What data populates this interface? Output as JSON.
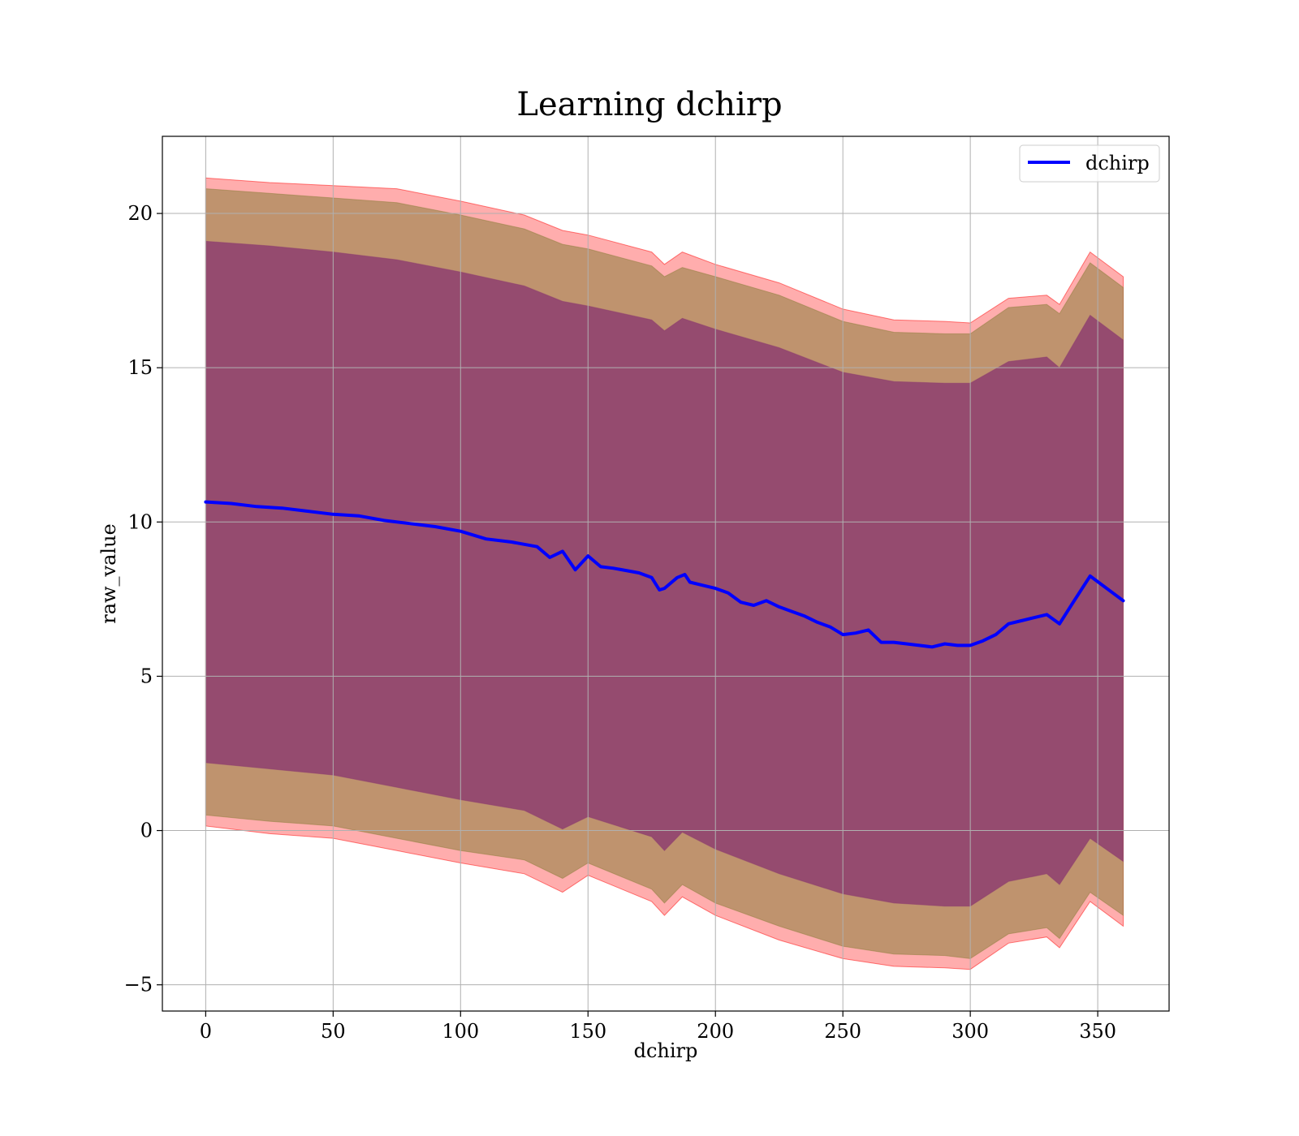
{
  "chart_data": {
    "type": "line",
    "title": "Learning dchirp",
    "xlabel": "dchirp",
    "ylabel": "raw_value",
    "xlim": [
      -17,
      378
    ],
    "ylim": [
      -5.85,
      22.5
    ],
    "x_ticks": [
      0,
      50,
      100,
      150,
      200,
      250,
      300,
      350
    ],
    "x_tick_labels": [
      "0",
      "50",
      "100",
      "150",
      "200",
      "250",
      "300",
      "350"
    ],
    "y_ticks": [
      -5,
      0,
      5,
      10,
      15,
      20
    ],
    "y_tick_labels": [
      "−5",
      "0",
      "5",
      "10",
      "15",
      "20"
    ],
    "grid": true,
    "legend": {
      "position": "top-right",
      "entries": [
        "dchirp"
      ]
    },
    "colors": {
      "line": "#0000ff",
      "outer_band": "#ff0000",
      "middle_band": "#8b7d3a",
      "inner_band": "#8b3a6f"
    },
    "series": [
      {
        "name": "dchirp",
        "x": [
          0,
          10,
          20,
          30,
          40,
          50,
          60,
          70,
          80,
          90,
          100,
          110,
          120,
          130,
          135,
          140,
          145,
          150,
          155,
          160,
          170,
          175,
          178,
          180,
          185,
          188,
          190,
          195,
          200,
          205,
          210,
          215,
          220,
          225,
          230,
          235,
          240,
          245,
          250,
          255,
          260,
          265,
          270,
          275,
          280,
          285,
          290,
          295,
          300,
          305,
          310,
          315,
          320,
          325,
          330,
          335,
          340,
          347,
          360
        ],
        "values": [
          10.65,
          10.6,
          10.5,
          10.45,
          10.35,
          10.25,
          10.2,
          10.05,
          9.95,
          9.85,
          9.7,
          9.45,
          9.35,
          9.2,
          8.85,
          9.05,
          8.45,
          8.9,
          8.55,
          8.5,
          8.35,
          8.2,
          7.8,
          7.85,
          8.2,
          8.3,
          8.05,
          7.95,
          7.85,
          7.7,
          7.4,
          7.3,
          7.45,
          7.25,
          7.1,
          6.95,
          6.75,
          6.6,
          6.35,
          6.4,
          6.5,
          6.1,
          6.1,
          6.05,
          6.0,
          5.95,
          6.05,
          6.0,
          6.0,
          6.15,
          6.35,
          6.7,
          6.8,
          6.9,
          7.0,
          6.7,
          7.35,
          8.25,
          7.45
        ]
      }
    ],
    "bands": [
      {
        "x": [
          0,
          25,
          50,
          75,
          100,
          125,
          140,
          150,
          175,
          180,
          187,
          200,
          225,
          250,
          270,
          290,
          300,
          315,
          330,
          335,
          347,
          360
        ],
        "upper": [
          21.15,
          21.0,
          20.9,
          20.8,
          20.4,
          19.95,
          19.45,
          19.3,
          18.75,
          18.35,
          18.75,
          18.35,
          17.75,
          16.9,
          16.55,
          16.5,
          16.45,
          17.25,
          17.35,
          17.05,
          18.75,
          17.95
        ],
        "lower": [
          0.15,
          -0.1,
          -0.25,
          -0.65,
          -1.05,
          -1.4,
          -2.0,
          -1.45,
          -2.3,
          -2.75,
          -2.15,
          -2.75,
          -3.55,
          -4.15,
          -4.4,
          -4.45,
          -4.5,
          -3.65,
          -3.45,
          -3.8,
          -2.3,
          -3.1
        ]
      },
      {
        "x": [
          0,
          25,
          50,
          75,
          100,
          125,
          140,
          150,
          175,
          180,
          187,
          200,
          225,
          250,
          270,
          290,
          300,
          315,
          330,
          335,
          347,
          360
        ],
        "upper": [
          20.8,
          20.65,
          20.5,
          20.35,
          19.95,
          19.5,
          19.0,
          18.85,
          18.3,
          17.95,
          18.25,
          17.95,
          17.35,
          16.5,
          16.15,
          16.1,
          16.1,
          16.95,
          17.05,
          16.75,
          18.4,
          17.6
        ],
        "lower": [
          0.5,
          0.3,
          0.15,
          -0.25,
          -0.65,
          -0.95,
          -1.55,
          -1.05,
          -1.9,
          -2.35,
          -1.75,
          -2.35,
          -3.1,
          -3.75,
          -4.0,
          -4.05,
          -4.15,
          -3.35,
          -3.15,
          -3.5,
          -2.0,
          -2.75
        ]
      },
      {
        "x": [
          0,
          25,
          50,
          75,
          100,
          125,
          140,
          150,
          175,
          180,
          187,
          200,
          225,
          250,
          270,
          290,
          300,
          315,
          330,
          335,
          347,
          360
        ],
        "upper": [
          19.1,
          18.95,
          18.75,
          18.5,
          18.1,
          17.65,
          17.15,
          17.0,
          16.55,
          16.2,
          16.6,
          16.25,
          15.65,
          14.85,
          14.55,
          14.5,
          14.5,
          15.2,
          15.35,
          15.0,
          16.7,
          15.9
        ],
        "lower": [
          2.2,
          2.0,
          1.8,
          1.4,
          1.0,
          0.65,
          0.05,
          0.45,
          -0.2,
          -0.65,
          -0.05,
          -0.6,
          -1.4,
          -2.05,
          -2.35,
          -2.45,
          -2.45,
          -1.65,
          -1.4,
          -1.75,
          -0.25,
          -1.0
        ]
      }
    ]
  }
}
